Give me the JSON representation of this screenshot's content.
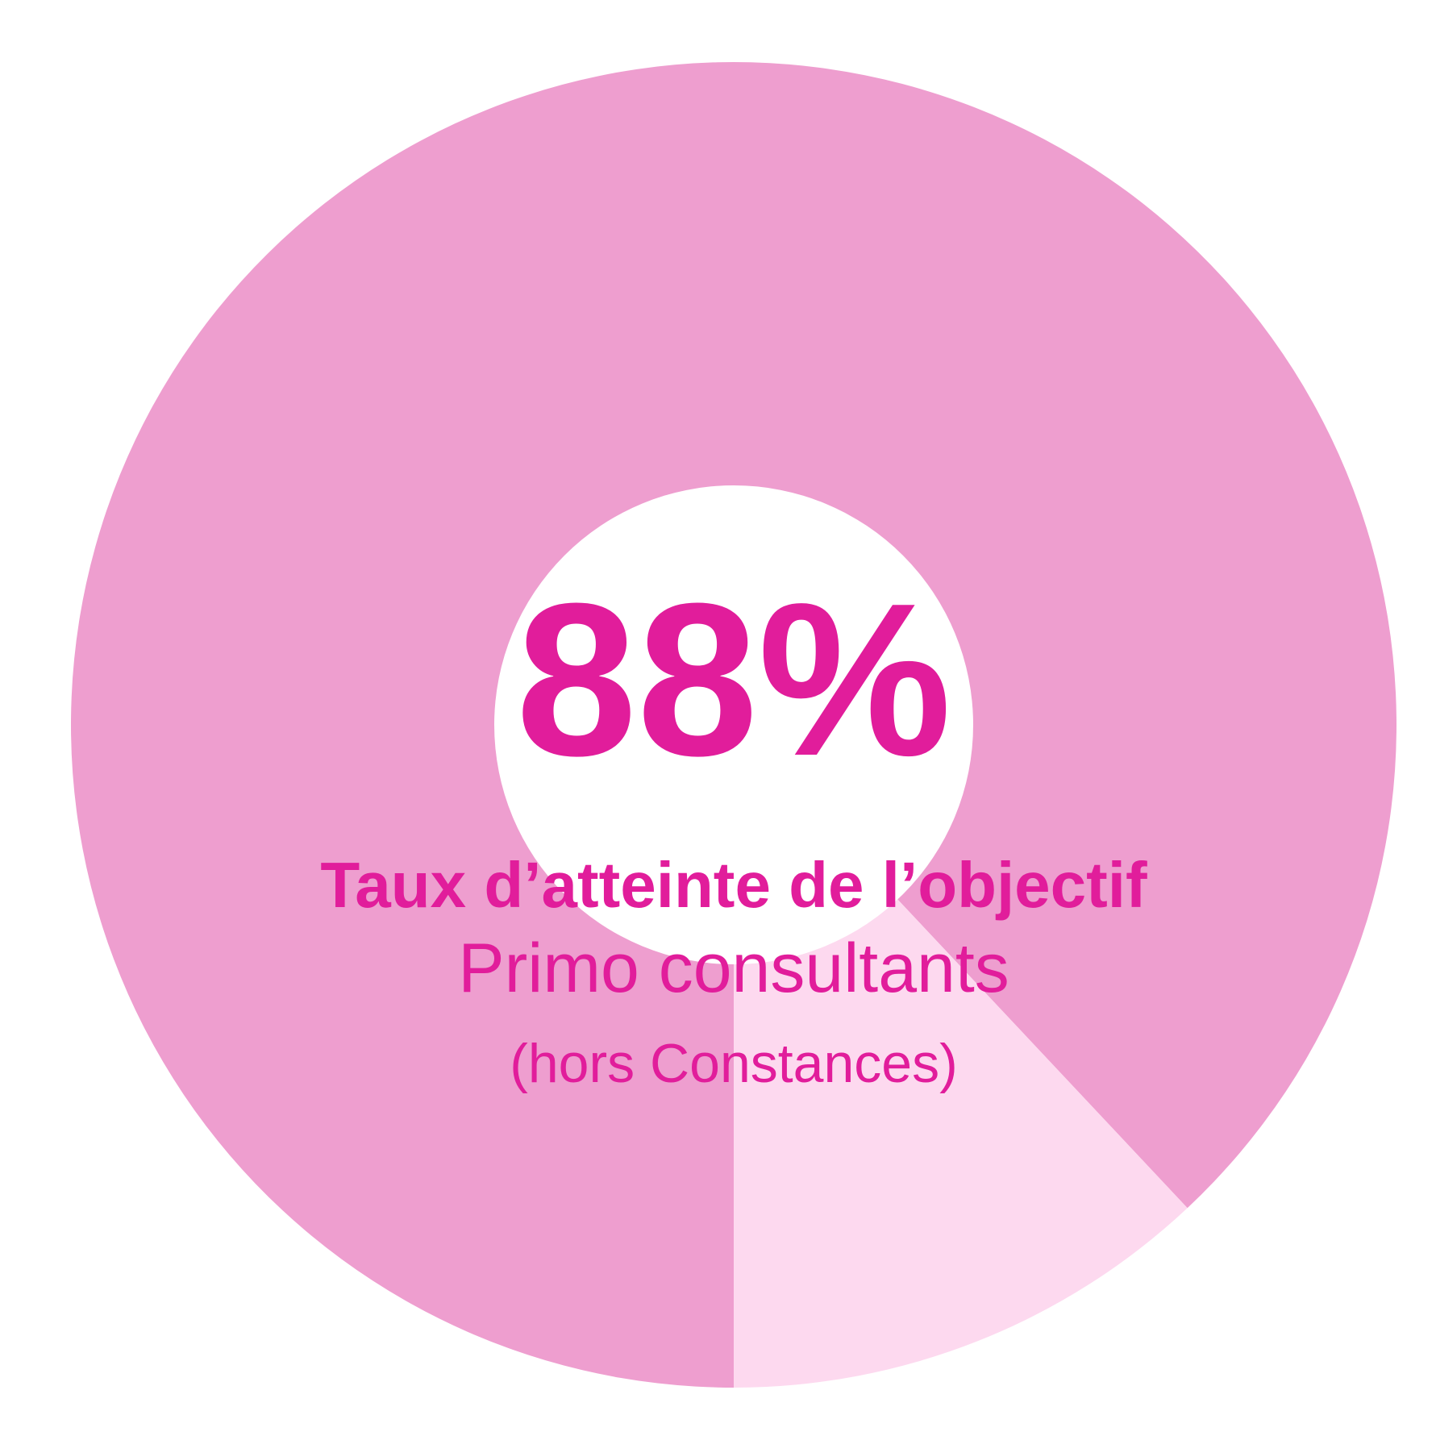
{
  "chart_data": {
    "type": "pie",
    "donut": true,
    "values": [
      88,
      12
    ],
    "value_labels": [
      "88%",
      null
    ],
    "colors": [
      "#ee9ecf",
      "#fdd9ef"
    ],
    "text_color": "#e11d9b",
    "title": "Taux d’atteinte de l’objectif",
    "subtitle": "Primo consultants",
    "note": "(hors Constances)"
  }
}
